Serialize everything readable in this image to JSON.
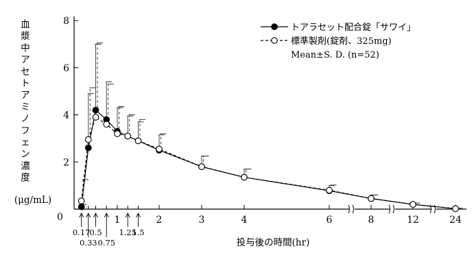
{
  "chart_data": {
    "type": "line",
    "ylabel_lines": [
      "血",
      "漿",
      "中",
      "ア",
      "セ",
      "ト",
      "ア",
      "ミ",
      "ノ",
      "フ",
      "ェ",
      "ン",
      "濃",
      "度"
    ],
    "yunit": "(μg/mL)",
    "xlabel": "投与後の時間(hr)",
    "ylim": [
      0,
      8
    ],
    "y_ticks": [
      0,
      2,
      4,
      6,
      8
    ],
    "y_tick_labels": [
      "0",
      "2",
      "4",
      "6",
      "8"
    ],
    "x_ticks_main": [
      {
        "x": 1,
        "label": "1"
      },
      {
        "x": 2,
        "label": "2"
      },
      {
        "x": 3,
        "label": "3"
      },
      {
        "x": 4,
        "label": "4"
      },
      {
        "x": 6,
        "label": "6"
      },
      {
        "x": 8,
        "label": "8"
      },
      {
        "x": 12,
        "label": "12"
      },
      {
        "x": 24,
        "label": "24"
      }
    ],
    "x_ticks_small": [
      {
        "x": 0.17,
        "label": "0.17"
      },
      {
        "x": 0.33,
        "label": "0.33"
      },
      {
        "x": 0.5,
        "label": "0.5"
      },
      {
        "x": 0.75,
        "label": "0.75"
      },
      {
        "x": 1.25,
        "label": "1.25"
      },
      {
        "x": 1.5,
        "label": "1.5"
      }
    ],
    "series": [
      {
        "name": "トアラセット配合錠「サワイ」",
        "marker": "filled",
        "line_style": "solid",
        "x": [
          0.17,
          0.33,
          0.5,
          0.75,
          1,
          1.25,
          1.5,
          2,
          3,
          4,
          6,
          8,
          12,
          24
        ],
        "y": [
          0.1,
          2.6,
          4.2,
          3.8,
          3.3,
          3.1,
          2.9,
          2.5,
          1.8,
          1.35,
          0.78,
          0.45,
          0.2,
          0.02
        ],
        "sd": [
          0.1,
          2.3,
          2.8,
          1.6,
          1.0,
          0.85,
          0.8,
          0.65,
          0.45,
          0.35,
          0.22,
          0.15,
          0.06,
          0.02
        ]
      },
      {
        "name": "標準製剤(錠剤、325mg)",
        "marker": "open",
        "line_style": "dashed",
        "x": [
          0.17,
          0.33,
          0.5,
          0.75,
          1,
          1.25,
          1.5,
          2,
          3,
          4,
          6,
          8,
          12,
          24
        ],
        "y": [
          0.35,
          2.95,
          3.9,
          3.6,
          3.2,
          3.1,
          2.9,
          2.55,
          1.8,
          1.35,
          0.8,
          0.45,
          0.2,
          0.02
        ],
        "sd": [
          0.9,
          2.2,
          3.15,
          1.7,
          1.15,
          0.9,
          0.9,
          0.65,
          0.45,
          0.35,
          0.22,
          0.15,
          0.06,
          0.02
        ]
      }
    ],
    "stats_note": "Mean±S. D. (n=52)",
    "legend_position": "top-right"
  }
}
